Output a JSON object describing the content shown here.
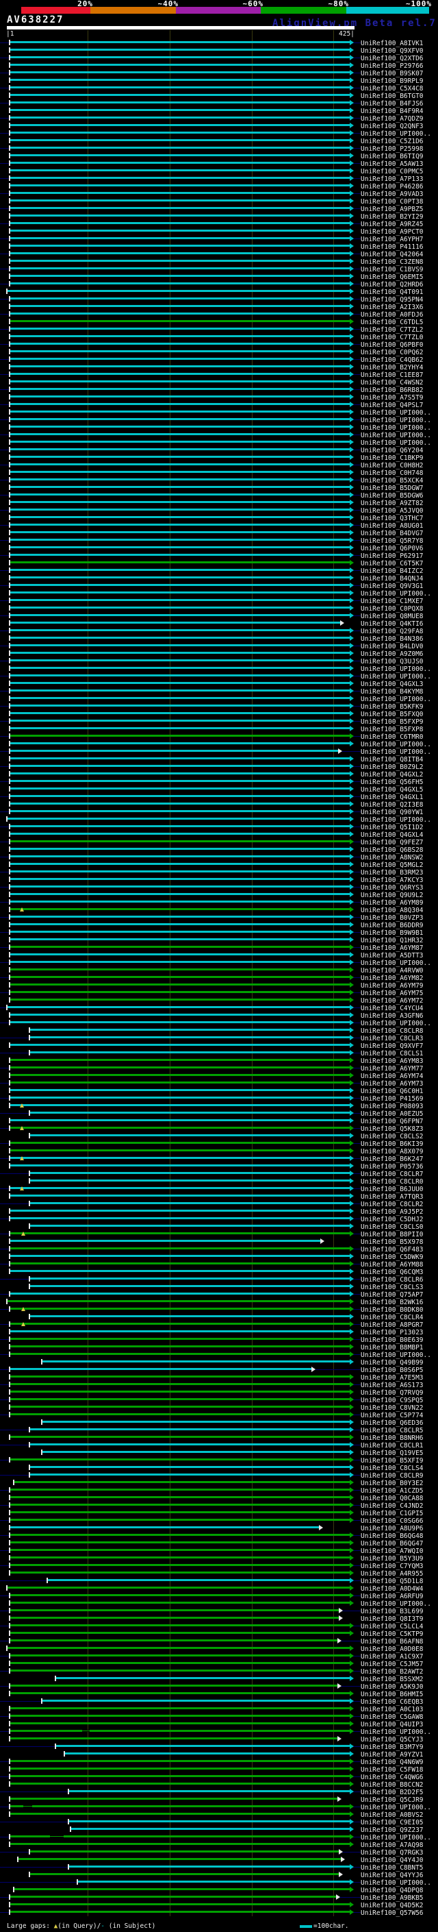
{
  "header": {
    "title": "AV638227",
    "app_name": "AlignView.pm Beta rel.7",
    "ruler_left": "|1",
    "ruler_right": "425|"
  },
  "footer": {
    "prefix": "Large gaps: ",
    "query_symbol": "▲",
    "query_text": "(in Query)/",
    "subject_symbol": "-",
    "subject_text": " (in Subject)",
    "scale_label": "=100char."
  },
  "colors": {
    "background": "#000000",
    "navy_connector": "#00006e",
    "gridline": "#3a3a10",
    "label_text": "#ededed",
    "watermark_blue": "#2222a4",
    "gap_query_yellow": "#d8ca46"
  },
  "chart_data": {
    "type": "bar",
    "subtype": "horizontal-alignment-overview",
    "title": "AV638227",
    "xlabel": "query position",
    "x_range": [
      1,
      425
    ],
    "x_gridlines": [
      100,
      200,
      300,
      400
    ],
    "grid": true,
    "legend_position": "bottom",
    "scale_x": 31,
    "identity_scale": [
      {
        "label": "20%",
        "color": "#e8172c",
        "width": 101
      },
      {
        "label": "~40%",
        "color": "#d67100",
        "width": 125
      },
      {
        "label": "~60%",
        "color": "#9e1fa8",
        "width": 124
      },
      {
        "label": "~80%",
        "color": "#00a000",
        "width": 125
      },
      {
        "label": "~100%",
        "color": "#00c3c9",
        "width": 121
      }
    ],
    "color_key": {
      "c": "#00c3c9",
      "g": "#00a000"
    },
    "label_prefix": "UniRef100_",
    "rows": [
      [
        "A8IVK1",
        "c"
      ],
      [
        "Q9XFV0",
        "c"
      ],
      [
        "Q2XTD6",
        "c"
      ],
      [
        "P29766",
        "c"
      ],
      [
        "B9SK07",
        "c"
      ],
      [
        "B9RPL9",
        "c"
      ],
      [
        "C5X4C8",
        "c"
      ],
      [
        "B6TGT0",
        "c"
      ],
      [
        "B4FJS6",
        "c"
      ],
      [
        "B4F9R4",
        "c"
      ],
      [
        "A7QDZ9",
        "c"
      ],
      [
        "Q2QNF3",
        "c"
      ],
      [
        "UPI000..",
        "c"
      ],
      [
        "C5Z1D6",
        "c"
      ],
      [
        "P25998",
        "c"
      ],
      [
        "B6TIQ9",
        "c"
      ],
      [
        "A5AW13",
        "c"
      ],
      [
        "C0PMC5",
        "c"
      ],
      [
        "A7P133",
        "c"
      ],
      [
        "P46286",
        "c"
      ],
      [
        "A9VAD3",
        "c"
      ],
      [
        "C0PT38",
        "c"
      ],
      [
        "A9PBZ5",
        "c"
      ],
      [
        "B2YI29",
        "c"
      ],
      [
        "A9RZ45",
        "c"
      ],
      [
        "A9PCT0",
        "c"
      ],
      [
        "A6YPH7",
        "c"
      ],
      [
        "P41116",
        "c"
      ],
      [
        "Q42064",
        "c"
      ],
      [
        "C3ZEN8",
        "c"
      ],
      [
        "C1BVS9",
        "c"
      ],
      [
        "Q6EMI5",
        "c"
      ],
      [
        "Q2HRD6",
        "c"
      ],
      [
        "Q4T091",
        "c",
        1
      ],
      [
        "Q95PN4",
        "c"
      ],
      [
        "A2I3X6",
        "c"
      ],
      [
        "A0FDJ6",
        "c"
      ],
      [
        "C6TDL5",
        "g"
      ],
      [
        "C7TZL2",
        "c"
      ],
      [
        "C7TZL0",
        "c"
      ],
      [
        "Q6PBF0",
        "c"
      ],
      [
        "C0PQ62",
        "c"
      ],
      [
        "C4QB62",
        "c"
      ],
      [
        "B2YHY4",
        "c"
      ],
      [
        "C1EE87",
        "c"
      ],
      [
        "C4WSN2",
        "c"
      ],
      [
        "B6RB82",
        "c"
      ],
      [
        "A7S5T9",
        "c"
      ],
      [
        "Q4PSL7",
        "c"
      ],
      [
        "UPI000..",
        "c"
      ],
      [
        "UPI000..",
        "c"
      ],
      [
        "UPI000..",
        "c"
      ],
      [
        "UPI000..",
        "c"
      ],
      [
        "UPI000..",
        "c"
      ],
      [
        "Q6Y204",
        "c"
      ],
      [
        "C1BKP9",
        "c"
      ],
      [
        "C0H8H2",
        "c"
      ],
      [
        "C0H748",
        "c"
      ],
      [
        "B5XCK4",
        "c"
      ],
      [
        "B5DGW7",
        "c"
      ],
      [
        "B5DGW6",
        "c"
      ],
      [
        "A9ZT82",
        "c"
      ],
      [
        "A5JVQ0",
        "c"
      ],
      [
        "Q3THC7",
        "c"
      ],
      [
        "A8UG01",
        "c"
      ],
      [
        "B4DVG7",
        "c"
      ],
      [
        "Q5R7Y8",
        "c"
      ],
      [
        "Q6P0V6",
        "c"
      ],
      [
        "P62917",
        "c"
      ],
      [
        "C6T5K7",
        "g"
      ],
      [
        "B4IZC2",
        "c"
      ],
      [
        "B4QNJ4",
        "c"
      ],
      [
        "Q9V3G1",
        "c"
      ],
      [
        "UPI000..",
        "c"
      ],
      [
        "C1MXE7",
        "c"
      ],
      [
        "C0PQX8",
        "c"
      ],
      [
        "Q8MUE8",
        "c"
      ],
      [
        "Q4KTI6",
        "c",
        4,
        413
      ],
      [
        "Q29FA8",
        "c"
      ],
      [
        "B4N386",
        "c"
      ],
      [
        "B4LDV0",
        "c"
      ],
      [
        "A9Z0M6",
        "c"
      ],
      [
        "Q3UJS0",
        "c"
      ],
      [
        "UPI000..",
        "c"
      ],
      [
        "UPI000..",
        "c"
      ],
      [
        "Q4GXL3",
        "c"
      ],
      [
        "B4KYM8",
        "c"
      ],
      [
        "UPI000..",
        "c"
      ],
      [
        "B5KFK9",
        "c"
      ],
      [
        "B5FXQ0",
        "c"
      ],
      [
        "B5FXP9",
        "c"
      ],
      [
        "B5FXP8",
        "c"
      ],
      [
        "C6TMR0",
        "g"
      ],
      [
        "UPI000..",
        "c"
      ],
      [
        "UPI000..",
        "c",
        4,
        411
      ],
      [
        "Q8ITB4",
        "c"
      ],
      [
        "B0Z9L2",
        "c"
      ],
      [
        "Q4GXL2",
        "c"
      ],
      [
        "Q56FH5",
        "c"
      ],
      [
        "Q4GXL5",
        "c"
      ],
      [
        "Q4GXL1",
        "c"
      ],
      [
        "Q2I3E8",
        "c"
      ],
      [
        "Q90YW1",
        "c"
      ],
      [
        "UPI000..",
        "c",
        1
      ],
      [
        "Q5I1D2",
        "c"
      ],
      [
        "Q4GXL4",
        "c"
      ],
      [
        "Q9FEZ7",
        "g"
      ],
      [
        "Q6BS28",
        "c"
      ],
      [
        "A8NSW2",
        "c"
      ],
      [
        "Q5MGL2",
        "c"
      ],
      [
        "B3RM23",
        "c"
      ],
      [
        "A7KCY3",
        "c"
      ],
      [
        "Q6RYS3",
        "c"
      ],
      [
        "Q9U9L2",
        "c"
      ],
      [
        "A6YM89",
        "c"
      ],
      [
        "A8Q304",
        "g",
        4,
        425,
        {
          "t": "q",
          "u": 19
        }
      ],
      [
        "B0VZP3",
        "c"
      ],
      [
        "B6DDR9",
        "c"
      ],
      [
        "B9W9B1",
        "c"
      ],
      [
        "Q1HR32",
        "c"
      ],
      [
        "A6YM87",
        "g"
      ],
      [
        "A5DTT3",
        "c"
      ],
      [
        "UPI000..",
        "c"
      ],
      [
        "A4RVW0",
        "g"
      ],
      [
        "A6YM82",
        "g"
      ],
      [
        "A6YM79",
        "g"
      ],
      [
        "A6YM75",
        "g"
      ],
      [
        "A6YM72",
        "g"
      ],
      [
        "C4YCU4",
        "c",
        1
      ],
      [
        "A3GFN6",
        "c"
      ],
      [
        "UPI000..",
        "c"
      ],
      [
        "C8CLR8",
        "c",
        29
      ],
      [
        "C8CLR3",
        "c",
        29
      ],
      [
        "Q9XVF7",
        "c"
      ],
      [
        "C8CLS1",
        "c",
        29
      ],
      [
        "A6YM83",
        "g"
      ],
      [
        "A6YM77",
        "g"
      ],
      [
        "A6YM74",
        "g"
      ],
      [
        "A6YM73",
        "g"
      ],
      [
        "Q6C0H1",
        "c"
      ],
      [
        "P41569",
        "c"
      ],
      [
        "P08093",
        "c",
        4,
        425,
        {
          "t": "q",
          "u": 19
        }
      ],
      [
        "A0EZU5",
        "c",
        29
      ],
      [
        "Q6FPN7",
        "c"
      ],
      [
        "Q5K8Z3",
        "g",
        4,
        425,
        {
          "t": "q",
          "u": 19
        }
      ],
      [
        "C8CLS2",
        "c",
        29
      ],
      [
        "B6KI39",
        "g"
      ],
      [
        "A8X079",
        "g"
      ],
      [
        "B6K247",
        "c",
        4,
        425,
        {
          "t": "q",
          "u": 19
        }
      ],
      [
        "P05736",
        "c"
      ],
      [
        "C8CLR7",
        "c",
        29
      ],
      [
        "C8CLR0",
        "c",
        29
      ],
      [
        "B6JUU0",
        "c",
        4,
        425,
        {
          "t": "q",
          "u": 19
        }
      ],
      [
        "A7TQR3",
        "c"
      ],
      [
        "C8CLR2",
        "c",
        29
      ],
      [
        "A9J5P2",
        "c"
      ],
      [
        "C5DHJ2",
        "c"
      ],
      [
        "C8CLS0",
        "c",
        29
      ],
      [
        "B8PII0",
        "g",
        4,
        425,
        {
          "t": "q",
          "u": 21
        }
      ],
      [
        "B5X978",
        "c",
        4,
        389
      ],
      [
        "Q6F483",
        "g"
      ],
      [
        "C5DWK9",
        "c"
      ],
      [
        "A6YM88",
        "g"
      ],
      [
        "Q6CQM3",
        "c"
      ],
      [
        "C8CLR6",
        "c",
        29
      ],
      [
        "C8CLS3",
        "c",
        29
      ],
      [
        "Q75AP7",
        "c"
      ],
      [
        "B2WK16",
        "g",
        1
      ],
      [
        "B0DK80",
        "g",
        4,
        425,
        {
          "t": "q",
          "u": 21
        }
      ],
      [
        "C8CLR4",
        "c",
        29
      ],
      [
        "A8PGR7",
        "g",
        4,
        425,
        {
          "t": "q",
          "u": 21
        }
      ],
      [
        "P13023",
        "c"
      ],
      [
        "B0E639",
        "g"
      ],
      [
        "B8MBP1",
        "g"
      ],
      [
        "UPI000..",
        "g"
      ],
      [
        "Q49B99",
        "c",
        44
      ],
      [
        "B0S6P5",
        "c",
        4,
        378
      ],
      [
        "A7E5M3",
        "g"
      ],
      [
        "A6S173",
        "g"
      ],
      [
        "Q7RVQ9",
        "g"
      ],
      [
        "C9SPQ5",
        "g"
      ],
      [
        "C8VN22",
        "g"
      ],
      [
        "C5P774",
        "g"
      ],
      [
        "Q6ED36",
        "c",
        44
      ],
      [
        "C8CLR5",
        "c",
        29
      ],
      [
        "B8NRH6",
        "g"
      ],
      [
        "C8CLR1",
        "c",
        29
      ],
      [
        "Q19VE5",
        "c",
        44
      ],
      [
        "B5XFI9",
        "g"
      ],
      [
        "C8CLS4",
        "c",
        29
      ],
      [
        "C8CLR9",
        "c",
        29
      ],
      [
        "B0Y3E2",
        "g",
        9
      ],
      [
        "A1CZD5",
        "g"
      ],
      [
        "Q0CA88",
        "g"
      ],
      [
        "C4JND2",
        "g"
      ],
      [
        "C1GPI5",
        "g"
      ],
      [
        "C0SG66",
        "g"
      ],
      [
        "A8U9P6",
        "c",
        4,
        387
      ],
      [
        "B6QG48",
        "g"
      ],
      [
        "B6QG47",
        "g"
      ],
      [
        "A7WQI0",
        "g"
      ],
      [
        "B5Y3U9",
        "g"
      ],
      [
        "C7YQM3",
        "g"
      ],
      [
        "A4R955",
        "g"
      ],
      [
        "Q5D1L8",
        "c",
        50
      ],
      [
        "A0D4W4",
        "g",
        1
      ],
      [
        "A6RFU9",
        "g"
      ],
      [
        "UPI000..",
        "g"
      ],
      [
        "B3L699",
        "g",
        4,
        412
      ],
      [
        "Q8I3T9",
        "g",
        4,
        412
      ],
      [
        "C5LCL4",
        "g"
      ],
      [
        "C5KTP9",
        "g"
      ],
      [
        "B6AFN8",
        "g",
        4,
        410
      ],
      [
        "A0D0E8",
        "g",
        1
      ],
      [
        "A1C9X7",
        "g"
      ],
      [
        "C5JM57",
        "g"
      ],
      [
        "B2AWT2",
        "g"
      ],
      [
        "B5SXM2",
        "c",
        60
      ],
      [
        "A5K9J0",
        "g",
        4,
        410
      ],
      [
        "B6HMI5",
        "g"
      ],
      [
        "C6EQB3",
        "c",
        44
      ],
      [
        "A0C103",
        "g"
      ],
      [
        "C5GAW8",
        "g"
      ],
      [
        "Q4UIP3",
        "g"
      ],
      [
        "UPI000..",
        "g",
        4,
        425,
        {
          "t": "s",
          "a": 93,
          "b": 102
        }
      ],
      [
        "Q5CYJ3",
        "g",
        4,
        410
      ],
      [
        "B3M7Y9",
        "c",
        60
      ],
      [
        "A9YZV1",
        "c",
        71
      ],
      [
        "Q4N6W9",
        "g"
      ],
      [
        "C5FW18",
        "g"
      ],
      [
        "C4QWG6",
        "g"
      ],
      [
        "B8CCN2",
        "g"
      ],
      [
        "B2D2F5",
        "c",
        76
      ],
      [
        "Q5CJR9",
        "g",
        4,
        410
      ],
      [
        "UPI000..",
        "g",
        4,
        425,
        {
          "t": "s",
          "a": 21,
          "b": 32
        }
      ],
      [
        "A0BVS2",
        "g"
      ],
      [
        "C9EI05",
        "c",
        76
      ],
      [
        "Q9Z237",
        "c",
        79
      ],
      [
        "UPI000..",
        "g",
        4,
        425,
        {
          "t": "s",
          "a": 54,
          "b": 70
        }
      ],
      [
        "A7AQ98",
        "g"
      ],
      [
        "Q7RGK3",
        "g",
        29,
        412
      ],
      [
        "Q4Y4J0",
        "g",
        14,
        414
      ],
      [
        "C8BNT5",
        "c",
        76
      ],
      [
        "Q4YYJ6",
        "g",
        29,
        412
      ],
      [
        "UPI000..",
        "c",
        87
      ],
      [
        "Q4DPQ8",
        "g",
        9
      ],
      [
        "A9BKB5",
        "g",
        4,
        408
      ],
      [
        "Q4D5K2",
        "g"
      ],
      [
        "Q57W56",
        "g"
      ]
    ]
  }
}
